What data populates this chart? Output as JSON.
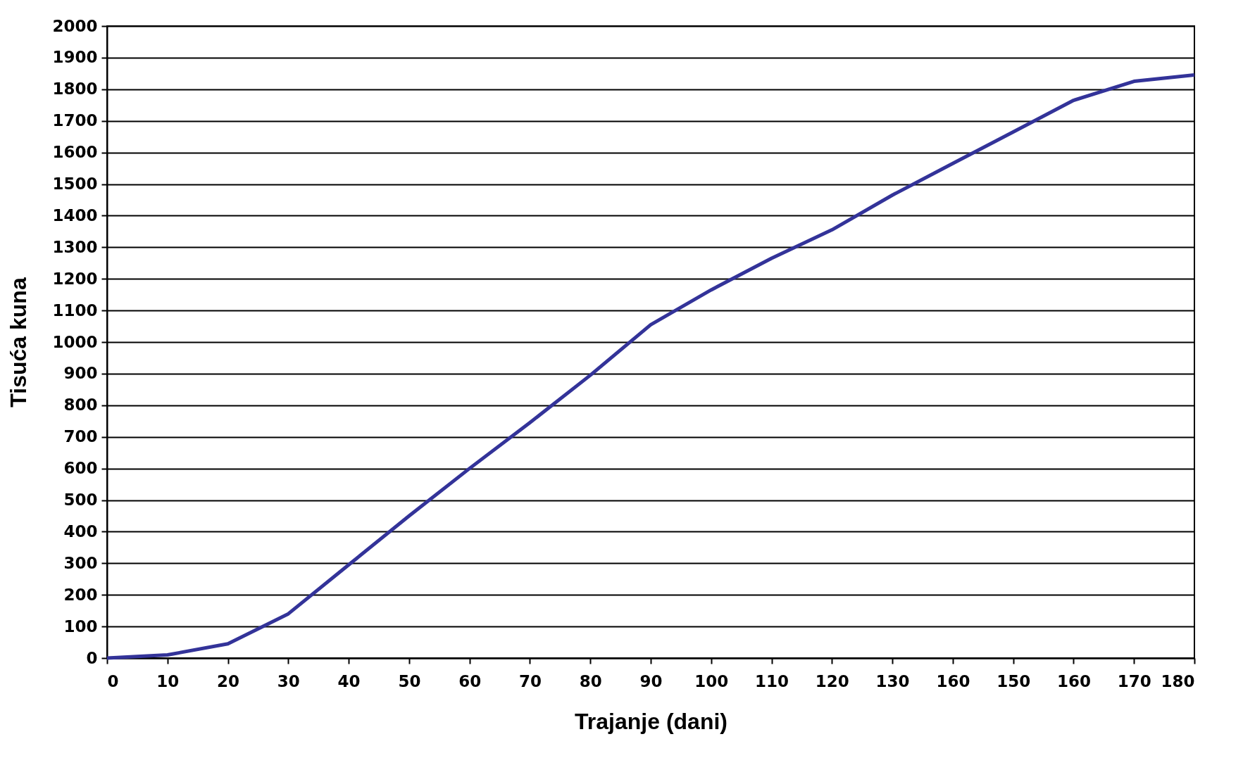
{
  "chart_data": {
    "type": "line",
    "xlabel": "Trajanje (dani)",
    "ylabel": "Tisuća  kuna",
    "categories": [
      "0",
      "10",
      "20",
      "30",
      "40",
      "50",
      "60",
      "70",
      "80",
      "90",
      "100",
      "110",
      "120",
      "130",
      "160",
      "150",
      "160",
      "170",
      "180"
    ],
    "series": [
      {
        "color": "#333399",
        "values": [
          0,
          10,
          45,
          140,
          295,
          450,
          600,
          745,
          895,
          1055,
          1165,
          1265,
          1355,
          1465,
          1565,
          1665,
          1765,
          1825,
          1845
        ]
      }
    ],
    "ylim": [
      0,
      2000
    ],
    "yticks": [
      0,
      100,
      200,
      300,
      400,
      500,
      600,
      700,
      800,
      900,
      1000,
      1100,
      1200,
      1300,
      1400,
      1500,
      1600,
      1700,
      1800,
      1900,
      2000
    ],
    "grid": "y",
    "marker": "none",
    "line_style": "solid"
  }
}
